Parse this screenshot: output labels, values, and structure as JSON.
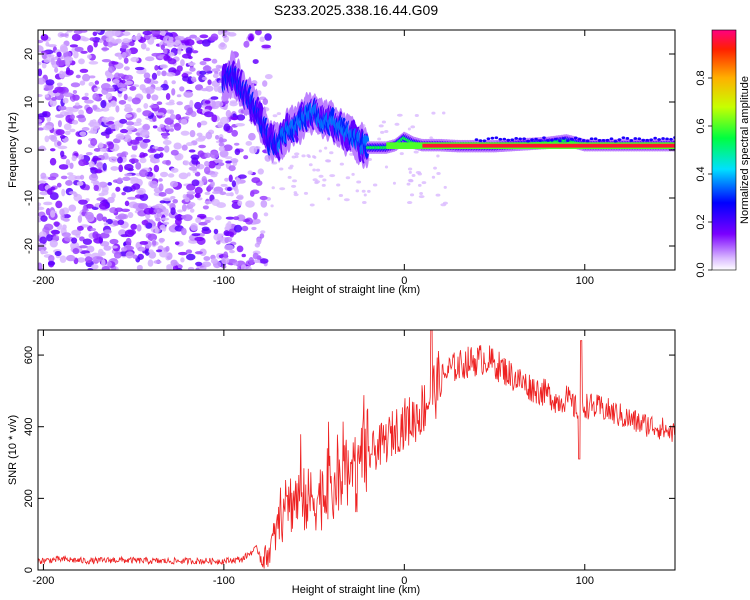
{
  "title": "S233.2025.338.16.44.G09",
  "chart_data": [
    {
      "id": "spectrogram",
      "type": "heatmap",
      "xlabel": "Height of straight line (km)",
      "ylabel": "Frequency (Hz)",
      "xlim": [
        -203,
        150
      ],
      "ylim": [
        -25,
        25
      ],
      "xticks": [
        -200,
        -100,
        0,
        100
      ],
      "yticks": [
        20,
        10,
        0,
        -10,
        -20
      ],
      "ridge": {
        "x": [
          -100,
          -95,
          -90,
          -85,
          -80,
          -75,
          -70,
          -65,
          -60,
          -55,
          -50,
          -45,
          -40,
          -35,
          -30,
          -25,
          -20,
          -15,
          -10,
          -5,
          0,
          5,
          10,
          20,
          30,
          50,
          80,
          90,
          100,
          120,
          150
        ],
        "y": [
          14,
          16,
          13,
          10,
          7,
          2,
          1,
          4,
          5,
          7,
          8,
          6,
          6,
          4,
          3,
          1.5,
          0.5,
          0.5,
          0.5,
          1,
          2.5,
          1.5,
          1,
          1,
          0.8,
          0.8,
          1.5,
          2,
          1,
          1,
          1
        ]
      },
      "colorbar": {
        "label": "Normalized spectral amplitude",
        "range": [
          0,
          1
        ],
        "ticks": [
          "0.0",
          "0.2",
          "0.4",
          "0.6",
          "0.8"
        ],
        "tick_values": [
          0,
          0.2,
          0.4,
          0.6,
          0.8
        ]
      }
    },
    {
      "id": "snr",
      "type": "line",
      "xlabel": "Height of straight line (km)",
      "ylabel": "SNR (10 * v/v)",
      "xlim": [
        -203,
        150
      ],
      "ylim": [
        0,
        670
      ],
      "xticks": [
        -200,
        -100,
        0,
        100
      ],
      "yticks": [
        0,
        200,
        400,
        600
      ],
      "color": "#ee2222",
      "series": [
        {
          "name": "SNR",
          "x": [
            -203,
            -190,
            -175,
            -160,
            -140,
            -120,
            -100,
            -90,
            -82,
            -78,
            -75,
            -70,
            -65,
            -60,
            -55,
            -50,
            -45,
            -40,
            -35,
            -30,
            -25,
            -20,
            -15,
            -10,
            -5,
            0,
            5,
            10,
            15,
            20,
            25,
            30,
            35,
            40,
            45,
            50,
            55,
            60,
            65,
            70,
            75,
            80,
            85,
            90,
            95,
            100,
            110,
            120,
            130,
            140,
            150
          ],
          "y": [
            25,
            30,
            25,
            28,
            25,
            25,
            25,
            30,
            60,
            30,
            50,
            120,
            180,
            200,
            190,
            200,
            210,
            220,
            240,
            260,
            290,
            320,
            340,
            360,
            390,
            410,
            420,
            450,
            490,
            530,
            560,
            570,
            580,
            585,
            590,
            575,
            560,
            540,
            525,
            510,
            500,
            490,
            470,
            480,
            450,
            460,
            450,
            430,
            410,
            400,
            380
          ]
        }
      ]
    }
  ]
}
